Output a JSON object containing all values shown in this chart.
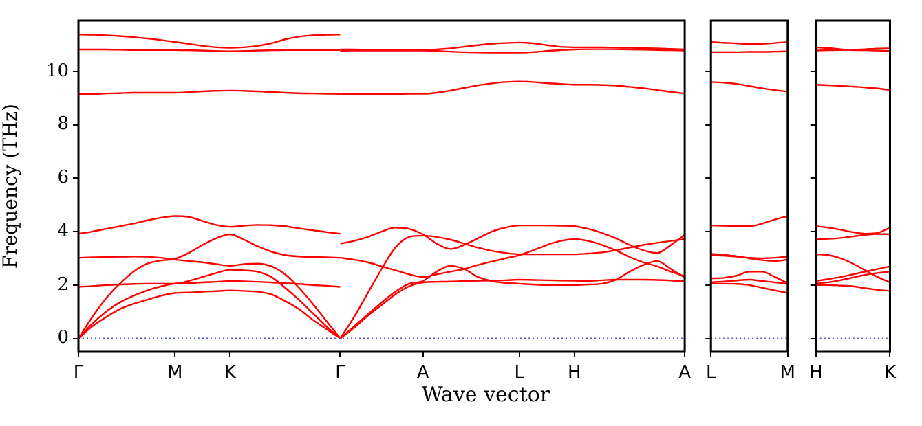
{
  "chart_data": [
    {
      "type": "line",
      "ylabel": "Frequency (THz)",
      "xlabel": "Wave vector",
      "ylim": [
        -0.5,
        11.9
      ],
      "yticks": [
        0,
        2,
        4,
        6,
        8,
        10
      ],
      "categories": [
        "Γ",
        null,
        null,
        null,
        null,
        null,
        null,
        "M",
        null,
        null,
        null,
        "K",
        null,
        null,
        null,
        null,
        null,
        null,
        null,
        "Γ",
        null,
        null,
        null,
        null,
        null,
        "A",
        null,
        null,
        null,
        null,
        null,
        null,
        "L",
        null,
        null,
        null,
        "H",
        null,
        null,
        null,
        null,
        null,
        null,
        null,
        "A"
      ],
      "grid": false,
      "legend": false,
      "marker": "none",
      "ref_lines": [
        {
          "axis": "y",
          "value": 0,
          "color": "#5555cc",
          "line_style": "dotted"
        }
      ],
      "series": [
        {
          "color": "#ff0000",
          "values": [
            3.92,
            4.0,
            4.1,
            4.2,
            4.3,
            4.42,
            4.52,
            4.58,
            4.55,
            4.4,
            4.25,
            4.18,
            4.22,
            4.25,
            4.24,
            4.2,
            4.12,
            4.05,
            3.98,
            3.92,
            null,
            null,
            null,
            null,
            null,
            null,
            null,
            null,
            null,
            null,
            null,
            null,
            null,
            null,
            null,
            null,
            null,
            null,
            null,
            null,
            null,
            null,
            null,
            null,
            null
          ]
        },
        {
          "color": "#ff0000",
          "values": [
            0,
            0.8,
            1.5,
            2.05,
            2.5,
            2.8,
            2.92,
            2.98,
            3.2,
            3.5,
            3.75,
            3.9,
            3.7,
            3.45,
            3.25,
            3.12,
            3.07,
            3.05,
            3.04,
            3.02,
            null,
            null,
            null,
            null,
            null,
            null,
            null,
            null,
            null,
            null,
            null,
            null,
            null,
            null,
            null,
            null,
            null,
            null,
            null,
            null,
            null,
            null,
            null,
            null,
            null
          ]
        },
        {
          "color": "#ff0000",
          "values": [
            3.02,
            3.04,
            3.05,
            3.06,
            3.07,
            3.06,
            3.02,
            2.95,
            2.9,
            2.85,
            2.78,
            2.72,
            2.78,
            2.8,
            2.7,
            2.4,
            1.9,
            1.3,
            0.65,
            0,
            null,
            null,
            null,
            null,
            null,
            null,
            null,
            null,
            null,
            null,
            null,
            null,
            null,
            null,
            null,
            null,
            null,
            null,
            null,
            null,
            null,
            null,
            null,
            null,
            null
          ]
        },
        {
          "color": "#ff0000",
          "values": [
            0,
            0.55,
            1.0,
            1.35,
            1.6,
            1.8,
            1.95,
            2.05,
            2.07,
            2.1,
            2.12,
            2.15,
            2.14,
            2.12,
            2.1,
            2.07,
            2.04,
            2.0,
            1.97,
            1.93,
            null,
            null,
            null,
            null,
            null,
            null,
            null,
            null,
            null,
            null,
            null,
            null,
            null,
            null,
            null,
            null,
            null,
            null,
            null,
            null,
            null,
            null,
            null,
            null,
            null
          ]
        },
        {
          "color": "#ff0000",
          "values": [
            1.93,
            1.96,
            2.0,
            2.02,
            2.04,
            2.05,
            2.05,
            2.05,
            2.15,
            2.3,
            2.45,
            2.57,
            2.55,
            2.5,
            2.3,
            1.9,
            1.45,
            0.95,
            0.45,
            0,
            null,
            null,
            null,
            null,
            null,
            null,
            null,
            null,
            null,
            null,
            null,
            null,
            null,
            null,
            null,
            null,
            null,
            null,
            null,
            null,
            null,
            null,
            null,
            null,
            null
          ]
        },
        {
          "color": "#ff0000",
          "values": [
            0,
            0.45,
            0.8,
            1.1,
            1.3,
            1.45,
            1.6,
            1.7,
            1.72,
            1.75,
            1.77,
            1.8,
            1.78,
            1.75,
            1.65,
            1.4,
            1.1,
            0.7,
            0.35,
            0,
            null,
            null,
            null,
            null,
            null,
            null,
            null,
            null,
            null,
            null,
            null,
            null,
            null,
            null,
            null,
            null,
            null,
            null,
            null,
            null,
            null,
            null,
            null,
            null,
            null
          ]
        },
        {
          "color": "#ff0000",
          "values": [
            9.15,
            9.15,
            9.17,
            9.18,
            9.2,
            9.2,
            9.2,
            9.2,
            9.22,
            9.25,
            9.27,
            9.28,
            9.27,
            9.25,
            9.23,
            9.2,
            9.18,
            9.17,
            9.16,
            9.15,
            null,
            null,
            null,
            null,
            null,
            null,
            null,
            null,
            null,
            null,
            null,
            null,
            null,
            null,
            null,
            null,
            null,
            null,
            null,
            null,
            null,
            null,
            null,
            null,
            null
          ]
        },
        {
          "color": "#ff0000",
          "values": [
            10.82,
            10.82,
            10.82,
            10.81,
            10.8,
            10.8,
            10.8,
            10.8,
            10.79,
            10.78,
            10.76,
            10.75,
            10.76,
            10.78,
            10.79,
            10.8,
            10.8,
            10.8,
            10.8,
            10.8,
            null,
            null,
            null,
            null,
            null,
            null,
            null,
            null,
            null,
            null,
            null,
            null,
            null,
            null,
            null,
            null,
            null,
            null,
            null,
            null,
            null,
            null,
            null,
            null,
            null
          ]
        },
        {
          "color": "#ff0000",
          "values": [
            11.38,
            11.37,
            11.35,
            11.32,
            11.28,
            11.23,
            11.17,
            11.1,
            11.03,
            10.95,
            10.9,
            10.88,
            10.9,
            10.95,
            11.05,
            11.2,
            11.3,
            11.35,
            11.37,
            11.38,
            null,
            null,
            null,
            null,
            null,
            null,
            null,
            null,
            null,
            null,
            null,
            null,
            null,
            null,
            null,
            null,
            null,
            null,
            null,
            null,
            null,
            null,
            null,
            null,
            null
          ]
        },
        {
          "color": "#ff0000",
          "values": [
            null,
            null,
            null,
            null,
            null,
            null,
            null,
            null,
            null,
            null,
            null,
            null,
            null,
            null,
            null,
            null,
            null,
            null,
            null,
            3.55,
            3.65,
            3.8,
            4.0,
            4.15,
            4.1,
            3.9,
            3.55,
            3.35,
            3.5,
            3.75,
            4.0,
            4.15,
            4.23,
            4.23,
            4.23,
            4.22,
            4.2,
            4.1,
            3.95,
            3.75,
            3.5,
            3.3,
            3.2,
            3.5,
            3.88
          ]
        },
        {
          "color": "#ff0000",
          "values": [
            null,
            null,
            null,
            null,
            null,
            null,
            null,
            null,
            null,
            null,
            null,
            null,
            null,
            null,
            null,
            null,
            null,
            null,
            null,
            0,
            0.8,
            1.7,
            2.6,
            3.4,
            3.8,
            3.85,
            3.8,
            3.7,
            3.55,
            3.4,
            3.28,
            3.2,
            3.15,
            3.15,
            3.15,
            3.15,
            3.15,
            3.18,
            3.22,
            3.3,
            3.4,
            3.5,
            3.58,
            3.65,
            3.72
          ]
        },
        {
          "color": "#ff0000",
          "values": [
            null,
            null,
            null,
            null,
            null,
            null,
            null,
            null,
            null,
            null,
            null,
            null,
            null,
            null,
            null,
            null,
            null,
            null,
            null,
            3.02,
            2.95,
            2.85,
            2.7,
            2.55,
            2.4,
            2.3,
            2.4,
            2.5,
            2.6,
            2.75,
            2.88,
            3.0,
            3.12,
            3.3,
            3.5,
            3.65,
            3.72,
            3.65,
            3.5,
            3.3,
            3.05,
            2.85,
            2.7,
            2.5,
            2.33
          ]
        },
        {
          "color": "#ff0000",
          "values": [
            null,
            null,
            null,
            null,
            null,
            null,
            null,
            null,
            null,
            null,
            null,
            null,
            null,
            null,
            null,
            null,
            null,
            null,
            null,
            0,
            0.45,
            0.9,
            1.35,
            1.75,
            2.05,
            2.15,
            2.5,
            2.72,
            2.6,
            2.3,
            2.15,
            2.08,
            2.05,
            2.02,
            2.0,
            2.0,
            2.0,
            2.02,
            2.05,
            2.2,
            2.5,
            2.75,
            2.9,
            2.6,
            2.28
          ]
        },
        {
          "color": "#ff0000",
          "values": [
            null,
            null,
            null,
            null,
            null,
            null,
            null,
            null,
            null,
            null,
            null,
            null,
            null,
            null,
            null,
            null,
            null,
            null,
            null,
            0,
            0.4,
            0.85,
            1.25,
            1.65,
            1.95,
            2.1,
            2.12,
            2.13,
            2.15,
            2.16,
            2.17,
            2.18,
            2.2,
            2.19,
            2.18,
            2.17,
            2.16,
            2.15,
            2.18,
            2.2,
            2.2,
            2.2,
            2.19,
            2.17,
            2.14
          ]
        },
        {
          "color": "#ff0000",
          "values": [
            null,
            null,
            null,
            null,
            null,
            null,
            null,
            null,
            null,
            null,
            null,
            null,
            null,
            null,
            null,
            null,
            null,
            null,
            null,
            9.15,
            9.15,
            9.15,
            9.15,
            9.15,
            9.16,
            9.16,
            9.2,
            9.28,
            9.38,
            9.48,
            9.55,
            9.6,
            9.62,
            9.6,
            9.56,
            9.53,
            9.5,
            9.5,
            9.49,
            9.47,
            9.42,
            9.37,
            9.3,
            9.23,
            9.17
          ]
        },
        {
          "color": "#ff0000",
          "values": [
            null,
            null,
            null,
            null,
            null,
            null,
            null,
            null,
            null,
            null,
            null,
            null,
            null,
            null,
            null,
            null,
            null,
            null,
            null,
            10.82,
            10.82,
            10.81,
            10.8,
            10.8,
            10.8,
            10.8,
            10.82,
            10.86,
            10.92,
            10.98,
            11.03,
            11.06,
            11.08,
            11.05,
            10.98,
            10.92,
            10.9,
            10.9,
            10.9,
            10.89,
            10.88,
            10.87,
            10.86,
            10.84,
            10.82
          ]
        },
        {
          "color": "#ff0000",
          "values": [
            null,
            null,
            null,
            null,
            null,
            null,
            null,
            null,
            null,
            null,
            null,
            null,
            null,
            null,
            null,
            null,
            null,
            null,
            null,
            10.77,
            10.78,
            10.78,
            10.78,
            10.78,
            10.78,
            10.78,
            10.76,
            10.74,
            10.72,
            10.71,
            10.7,
            10.7,
            10.7,
            10.72,
            10.76,
            10.8,
            10.82,
            10.83,
            10.83,
            10.83,
            10.82,
            10.81,
            10.8,
            10.79,
            10.78
          ]
        }
      ]
    },
    {
      "type": "line",
      "ylim": [
        -0.5,
        11.9
      ],
      "yticks": [
        0,
        2,
        4,
        6,
        8,
        10
      ],
      "categories": [
        "L",
        null,
        null,
        null,
        null,
        null,
        "M"
      ],
      "tick_labels": "x",
      "grid": false,
      "legend": false,
      "marker": "none",
      "ref_lines": [
        {
          "axis": "y",
          "value": 0,
          "color": "#5555cc",
          "line_style": "dotted"
        }
      ],
      "series": [
        {
          "color": "#ff0000",
          "values": [
            11.1,
            11.07,
            11.05,
            11.02,
            11.03,
            11.06,
            11.1
          ]
        },
        {
          "color": "#ff0000",
          "values": [
            10.72,
            10.72,
            10.72,
            10.73,
            10.73,
            10.74,
            10.75
          ]
        },
        {
          "color": "#ff0000",
          "values": [
            9.6,
            9.58,
            9.53,
            9.45,
            9.37,
            9.3,
            9.24
          ]
        },
        {
          "color": "#ff0000",
          "values": [
            4.23,
            4.22,
            4.21,
            4.2,
            4.3,
            4.45,
            4.58
          ]
        },
        {
          "color": "#ff0000",
          "values": [
            3.17,
            3.13,
            3.08,
            3.0,
            2.93,
            2.9,
            2.95
          ]
        },
        {
          "color": "#ff0000",
          "values": [
            3.12,
            3.1,
            3.06,
            3.02,
            3.0,
            3.02,
            3.07
          ]
        },
        {
          "color": "#ff0000",
          "values": [
            2.25,
            2.27,
            2.35,
            2.5,
            2.5,
            2.3,
            2.07
          ]
        },
        {
          "color": "#ff0000",
          "values": [
            2.1,
            2.13,
            2.17,
            2.2,
            2.15,
            2.1,
            2.04
          ]
        },
        {
          "color": "#ff0000",
          "values": [
            2.05,
            2.05,
            2.04,
            2.0,
            1.9,
            1.8,
            1.7
          ]
        }
      ]
    },
    {
      "type": "line",
      "ylim": [
        -0.5,
        11.9
      ],
      "yticks": [
        0,
        2,
        4,
        6,
        8,
        10
      ],
      "categories": [
        "H",
        null,
        null,
        null,
        null,
        null,
        "K"
      ],
      "tick_labels": "x",
      "grid": false,
      "legend": false,
      "marker": "none",
      "ref_lines": [
        {
          "axis": "y",
          "value": 0,
          "color": "#5555cc",
          "line_style": "dotted"
        }
      ],
      "series": [
        {
          "color": "#ff0000",
          "values": [
            10.9,
            10.87,
            10.83,
            10.8,
            10.79,
            10.78,
            10.76
          ]
        },
        {
          "color": "#ff0000",
          "values": [
            10.78,
            10.79,
            10.8,
            10.81,
            10.83,
            10.85,
            10.86
          ]
        },
        {
          "color": "#ff0000",
          "values": [
            9.5,
            9.48,
            9.46,
            9.43,
            9.4,
            9.36,
            9.3
          ]
        },
        {
          "color": "#ff0000",
          "values": [
            4.2,
            4.15,
            4.07,
            3.98,
            3.92,
            3.95,
            4.15
          ]
        },
        {
          "color": "#ff0000",
          "values": [
            3.72,
            3.73,
            3.76,
            3.82,
            3.88,
            3.91,
            3.9
          ]
        },
        {
          "color": "#ff0000",
          "values": [
            3.15,
            3.12,
            3.0,
            2.8,
            2.55,
            2.3,
            2.1
          ]
        },
        {
          "color": "#ff0000",
          "values": [
            2.15,
            2.22,
            2.3,
            2.4,
            2.5,
            2.6,
            2.7
          ]
        },
        {
          "color": "#ff0000",
          "values": [
            2.05,
            2.1,
            2.18,
            2.28,
            2.38,
            2.45,
            2.5
          ]
        },
        {
          "color": "#ff0000",
          "values": [
            2.0,
            2.0,
            1.98,
            1.95,
            1.88,
            1.82,
            1.78
          ]
        }
      ]
    }
  ]
}
